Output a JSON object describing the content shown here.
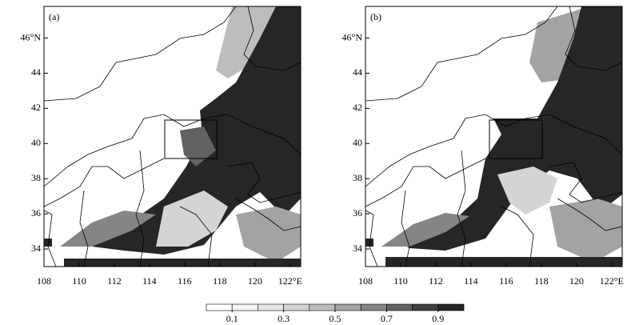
{
  "map": {
    "xlim": [
      108,
      122.6
    ],
    "ylim": [
      33,
      47.8
    ],
    "xticks": [
      108,
      110,
      112,
      114,
      116,
      118,
      120,
      {
        "value": 122,
        "label": "122°E"
      }
    ],
    "yticks": [
      34,
      36,
      38,
      40,
      42,
      44,
      {
        "value": 46,
        "label": "46°N"
      }
    ]
  },
  "panels": [
    {
      "label": "(a)"
    },
    {
      "label": "(b)"
    }
  ],
  "colorbar": {
    "levels": [
      0,
      0.1,
      0.2,
      0.3,
      0.4,
      0.5,
      0.6,
      0.7,
      0.8,
      0.9,
      1.0
    ],
    "colors": [
      "#ffffff",
      "#f4f4f4",
      "#e6e6e6",
      "#d4d4d4",
      "#bdbdbd",
      "#a3a3a3",
      "#858585",
      "#626262",
      "#3e3e3e",
      "#262626"
    ],
    "ticks": [
      0.1,
      0.3,
      0.5,
      0.7,
      0.9
    ]
  }
}
